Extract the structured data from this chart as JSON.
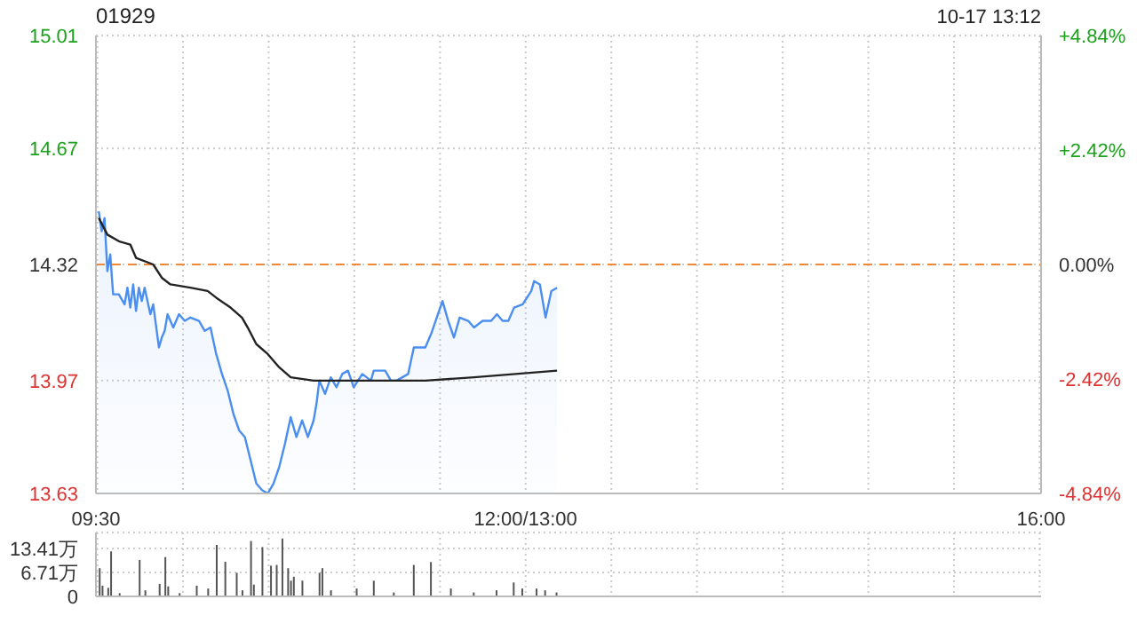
{
  "chart_data": [
    {
      "type": "area",
      "title": "01929",
      "annotations": [
        "10-17 13:12"
      ],
      "categories": [
        "09:30",
        null,
        null,
        null,
        null,
        null,
        null,
        null,
        null,
        null,
        null,
        null,
        null,
        null,
        null,
        null,
        null,
        null,
        null,
        null,
        null,
        null,
        null,
        null,
        null,
        null,
        null,
        null,
        null,
        null,
        null,
        null,
        null,
        null,
        null,
        null,
        null,
        null,
        null,
        null,
        null,
        null,
        null,
        null,
        null,
        null,
        null,
        null,
        null,
        null,
        null,
        null,
        null,
        null,
        null,
        null,
        null,
        null,
        null,
        null,
        null,
        null,
        null,
        null,
        null,
        null,
        null,
        null,
        null,
        null,
        null,
        null,
        null,
        null,
        null,
        null,
        null,
        null,
        null,
        null,
        null,
        null,
        null,
        null,
        null,
        null,
        null,
        null,
        null,
        null,
        null,
        null,
        null,
        null,
        null,
        null,
        null,
        null,
        null,
        null,
        null,
        null,
        null,
        null,
        null,
        null,
        null,
        null,
        null,
        null,
        null,
        null,
        null,
        null,
        null,
        null,
        null,
        null,
        null,
        null,
        null,
        null,
        null,
        null,
        null,
        null,
        null,
        null,
        null,
        null,
        null,
        null,
        null,
        null,
        null,
        null,
        null,
        null,
        null,
        null,
        null,
        null,
        null,
        null,
        null,
        null,
        null,
        null,
        null,
        null,
        "12:00/13:00",
        null,
        null,
        null,
        null,
        null,
        null,
        null,
        null,
        null,
        null,
        null,
        null,
        null,
        null,
        null,
        null,
        null,
        null,
        null,
        null,
        null,
        null,
        null,
        null,
        null,
        null,
        null,
        null,
        null,
        null,
        null,
        null,
        null,
        null,
        null,
        null,
        null,
        null,
        null,
        null,
        null,
        null,
        null,
        null,
        null,
        null,
        null,
        null,
        null,
        null,
        null,
        null,
        null,
        null,
        null,
        null,
        null,
        null,
        null,
        null,
        null,
        null,
        null,
        null,
        null,
        null,
        null,
        null,
        null,
        null,
        null,
        null,
        null,
        null,
        null,
        null,
        null,
        null,
        null,
        null,
        null,
        null,
        null,
        null,
        null,
        null,
        null,
        null,
        null,
        null,
        null,
        null,
        null,
        null,
        null,
        null,
        null,
        null,
        null,
        null,
        null,
        null,
        null,
        null,
        null,
        null,
        null,
        null,
        null,
        null,
        null,
        null,
        null,
        null,
        null,
        null,
        null,
        null,
        null,
        null,
        null,
        null,
        null,
        null,
        null,
        null,
        null,
        null,
        null,
        null,
        null,
        null,
        null,
        null,
        null,
        null,
        null,
        null,
        null,
        null,
        null,
        null,
        null,
        null,
        null,
        null,
        null,
        null,
        null,
        null,
        null,
        null,
        null,
        null,
        null,
        null,
        null,
        null,
        null,
        null,
        null,
        null,
        null,
        null,
        null,
        null,
        null,
        null,
        null,
        null,
        null,
        null,
        null,
        null,
        null,
        null,
        null,
        null,
        null,
        "16:00"
      ],
      "ylim": [
        13.63,
        15.01
      ],
      "yticks": [
        13.63,
        13.97,
        14.32,
        14.67,
        15.01
      ],
      "y2lim": [
        -4.84,
        4.84
      ],
      "y2ticks": [
        {
          "value": -4.84,
          "label": "-4.84%"
        },
        {
          "value": -2.42,
          "label": "-2.42%"
        },
        {
          "value": 0,
          "label": "0.00%"
        },
        {
          "value": 2.42,
          "label": "+2.42%"
        },
        {
          "value": 4.84,
          "label": "+4.84%"
        }
      ],
      "grid": true,
      "ref_lines": [
        {
          "axis": "y",
          "value": 14.32,
          "color": "#f0883a",
          "line_style": "dashed"
        }
      ],
      "series": [
        {
          "color": "#4a8ef0",
          "values": [
            null,
            14.48,
            14.42,
            14.46,
            14.3,
            14.35,
            14.23,
            null,
            14.23,
            null,
            14.2,
            14.25,
            14.19,
            14.26,
            14.18,
            14.25,
            14.21,
            14.25,
            null,
            14.17,
            14.2,
            null,
            14.07,
            14.1,
            14.12,
            14.17,
            null,
            14.13,
            null,
            14.17,
            null,
            14.15,
            null,
            14.16,
            null,
            null,
            14.15,
            null,
            14.12,
            null,
            14.13,
            null,
            14.05,
            null,
            13.99,
            null,
            13.94,
            null,
            13.87,
            null,
            13.82,
            null,
            13.8,
            null,
            13.73,
            null,
            13.66,
            null,
            13.64,
            null,
            13.63,
            null,
            13.66,
            null,
            13.71,
            null,
            13.78,
            null,
            13.86,
            null,
            13.8,
            null,
            13.85,
            null,
            13.8,
            null,
            13.85,
            13.9,
            13.97,
            null,
            13.93,
            null,
            13.98,
            null,
            13.95,
            null,
            13.99,
            null,
            14.0,
            null,
            13.95,
            null,
            null,
            13.99,
            null,
            null,
            13.97,
            14.0,
            null,
            null,
            null,
            14.0,
            null,
            13.97,
            null,
            13.97,
            null,
            13.98,
            null,
            13.99,
            null,
            14.07,
            null,
            null,
            null,
            14.07,
            null,
            14.11,
            null,
            null,
            null,
            14.21,
            null,
            14.15,
            null,
            14.1,
            null,
            14.16,
            null,
            null,
            14.15,
            null,
            14.13,
            null,
            null,
            14.15,
            null,
            null,
            14.15,
            null,
            14.17,
            null,
            14.15,
            null,
            14.15,
            null,
            14.19,
            null,
            null,
            14.2,
            null,
            null,
            14.24,
            14.27,
            null,
            14.26,
            null,
            14.16,
            null,
            14.24,
            null,
            14.25,
            null,
            null,
            null,
            null,
            null,
            null,
            null,
            null,
            null,
            null,
            null,
            null,
            null,
            null,
            null,
            null,
            null,
            null,
            null,
            null,
            null,
            null,
            null,
            null,
            null,
            null,
            null,
            null,
            null,
            null,
            null,
            null,
            null,
            null,
            null,
            null,
            null,
            null,
            null,
            null,
            null,
            null,
            null,
            null,
            null,
            null,
            null,
            null,
            null,
            null,
            null,
            null,
            null,
            null,
            null,
            null,
            null,
            null,
            null,
            null,
            null,
            null,
            null,
            null,
            null,
            null,
            null,
            null,
            null,
            null,
            null,
            null,
            null,
            null,
            null,
            null,
            null,
            null,
            null,
            null,
            null,
            null,
            null,
            null,
            null,
            null,
            null,
            null,
            null,
            null,
            null,
            null,
            null,
            null,
            null,
            null,
            null,
            null,
            null,
            null,
            null,
            null,
            null,
            null,
            null,
            null,
            null,
            null,
            null,
            null,
            null,
            null,
            null,
            null,
            null,
            null,
            null,
            null,
            null,
            null,
            null,
            null,
            null,
            null,
            null,
            null,
            null,
            null,
            null,
            null,
            null,
            null,
            null,
            null,
            null,
            null,
            null,
            null,
            null,
            null,
            null,
            null,
            null,
            null,
            null,
            null,
            null,
            null,
            null,
            null,
            null,
            null,
            null,
            null,
            null,
            null,
            null,
            null,
            null,
            null,
            null,
            null,
            null,
            null,
            null,
            null,
            null,
            null,
            null
          ]
        },
        {
          "type": "line",
          "color": "#222222",
          "values": [
            null,
            14.46,
            null,
            null,
            14.41,
            null,
            null,
            null,
            14.39,
            null,
            null,
            null,
            14.38,
            null,
            14.34,
            null,
            null,
            null,
            null,
            null,
            14.32,
            null,
            null,
            14.28,
            null,
            null,
            14.26,
            null,
            null,
            null,
            null,
            null,
            null,
            14.25,
            null,
            null,
            null,
            null,
            null,
            14.24,
            null,
            null,
            14.22,
            null,
            null,
            null,
            null,
            14.19,
            null,
            null,
            null,
            14.16,
            null,
            14.13,
            null,
            null,
            14.08,
            null,
            null,
            null,
            14.05,
            null,
            null,
            null,
            14.01,
            null,
            null,
            null,
            13.98,
            null,
            null,
            null,
            null,
            null,
            null,
            null,
            13.97,
            null,
            null,
            null,
            null,
            null,
            null,
            null,
            null,
            null,
            null,
            null,
            13.97,
            null,
            null,
            null,
            null,
            null,
            null,
            null,
            null,
            null,
            null,
            null,
            null,
            null,
            null,
            null,
            null,
            13.97,
            null,
            null,
            null,
            null,
            null,
            null,
            null,
            null,
            null,
            13.97,
            null,
            null,
            null,
            null,
            null,
            null,
            null,
            null,
            null,
            null,
            null,
            null,
            null,
            null,
            null,
            null,
            13.98,
            null,
            null,
            null,
            null,
            null,
            null,
            null,
            null,
            null,
            null,
            null,
            null,
            null,
            null,
            null,
            null,
            null,
            null,
            null,
            null,
            null,
            null,
            null,
            null,
            null,
            null,
            null,
            null,
            14.0,
            null,
            null,
            null,
            null,
            null,
            null,
            null,
            null,
            null,
            null,
            null,
            null,
            null,
            null,
            null,
            null,
            null,
            null,
            null,
            null,
            null,
            null,
            null,
            null,
            null,
            null,
            null,
            null,
            null,
            null,
            null,
            null,
            null,
            null,
            null,
            null,
            null,
            null,
            null,
            null,
            null,
            null,
            null,
            null,
            null,
            null,
            null,
            null,
            null,
            null,
            null,
            null,
            null,
            null,
            null,
            null,
            null,
            null,
            null,
            null,
            null,
            null,
            null,
            null,
            null,
            null,
            null,
            null,
            null,
            null,
            null,
            null,
            null,
            null,
            null,
            null,
            null,
            null,
            null,
            null,
            null,
            null,
            null,
            null,
            null,
            null,
            null,
            null,
            null,
            null,
            null,
            null,
            null,
            null,
            null,
            null,
            null,
            null,
            null,
            null,
            null,
            null,
            null,
            null,
            null,
            null,
            null,
            null,
            null,
            null,
            null,
            null,
            null,
            null,
            null,
            null,
            null,
            null,
            null,
            null,
            null,
            null,
            null,
            null,
            null,
            null,
            null,
            null,
            null,
            null,
            null,
            null,
            null,
            null,
            null,
            null,
            null,
            null,
            null,
            null,
            null,
            null,
            null,
            null,
            null,
            null,
            null,
            null,
            null,
            null,
            null,
            null,
            null,
            null,
            null,
            null,
            null,
            null,
            null,
            null,
            null,
            null,
            null,
            null,
            null,
            null,
            null,
            null,
            null
          ]
        }
      ]
    },
    {
      "type": "bar",
      "grid": true,
      "categories": [
        null,
        null,
        null,
        null,
        null,
        null,
        null,
        null,
        null,
        null,
        null,
        null,
        null,
        null,
        null,
        null,
        null,
        null,
        null,
        null,
        null,
        null,
        null,
        null,
        null,
        null,
        null,
        null,
        null,
        null,
        null,
        null,
        null,
        null,
        null,
        null,
        null,
        null,
        null,
        null,
        null,
        null,
        null,
        null,
        null,
        null,
        null,
        null,
        null,
        null,
        null,
        null,
        null,
        null,
        null,
        null,
        null,
        null,
        null,
        null,
        null,
        null,
        null,
        null,
        null,
        null,
        null,
        null,
        null,
        null,
        null,
        null,
        null,
        null,
        null,
        null,
        null,
        null,
        null,
        null,
        null,
        null,
        null,
        null,
        null,
        null,
        null,
        null,
        null,
        null,
        null,
        null,
        null,
        null,
        null,
        null,
        null,
        null,
        null,
        null,
        null,
        null,
        null,
        null,
        null,
        null,
        null,
        null,
        null,
        null,
        null,
        null,
        null,
        null,
        null,
        null,
        null,
        null,
        null,
        null,
        null,
        null,
        null,
        null,
        null,
        null,
        null,
        null,
        null,
        null,
        null,
        null,
        null,
        null,
        null,
        null,
        null,
        null,
        null,
        null,
        null,
        null,
        null,
        null,
        null,
        null,
        null,
        null,
        null,
        null,
        null,
        null,
        null,
        null,
        null,
        null,
        null,
        null,
        null,
        null,
        null,
        null,
        null,
        null,
        null,
        null,
        null,
        null,
        null,
        null,
        null,
        null,
        null,
        null,
        null,
        null,
        null,
        null,
        null,
        null,
        null,
        null,
        null,
        null,
        null,
        null,
        null,
        null,
        null,
        null,
        null,
        null,
        null,
        null,
        null,
        null,
        null,
        null,
        null,
        null,
        null,
        null,
        null,
        null,
        null,
        null,
        null,
        null,
        null,
        null,
        null,
        null,
        null,
        null,
        null,
        null,
        null,
        null,
        null,
        null,
        null,
        null,
        null,
        null,
        null,
        null,
        null,
        null,
        null,
        null,
        null,
        null,
        null,
        null,
        null,
        null,
        null,
        null,
        null,
        null,
        null,
        null,
        null,
        null,
        null,
        null,
        null,
        null,
        null,
        null,
        null,
        null,
        null,
        null,
        null,
        null,
        null,
        null,
        null,
        null,
        null,
        null,
        null,
        null,
        null,
        null,
        null,
        null,
        null,
        null,
        null,
        null,
        null,
        null,
        null,
        null,
        null,
        null,
        null,
        null,
        null,
        null,
        null,
        null,
        null,
        null,
        null,
        null,
        null,
        null,
        null,
        null,
        null,
        null,
        null,
        null,
        null,
        null,
        null,
        null,
        null,
        null,
        null,
        null,
        null,
        null,
        null,
        null,
        null,
        null,
        null,
        null,
        null,
        null,
        null,
        null,
        null,
        null,
        null,
        null,
        null,
        null,
        null,
        null,
        null,
        null,
        null,
        null,
        null,
        null,
        null
      ],
      "ylim": [
        0,
        17.88
      ],
      "yticks": [
        0,
        {
          "value": 6.71,
          "label": "6.71万"
        },
        {
          "value": 13.41,
          "label": "13.41万"
        }
      ],
      "series": [
        {
          "color": "#555555",
          "values": [
            null,
            7.9,
            3.0,
            null,
            2.4,
            12.6,
            null,
            null,
            0.9,
            null,
            null,
            null,
            null,
            null,
            null,
            10.2,
            null,
            1.7,
            null,
            null,
            null,
            null,
            3.5,
            null,
            11.0,
            2.8,
            null,
            null,
            null,
            0.9,
            null,
            null,
            null,
            null,
            null,
            3.0,
            null,
            null,
            null,
            2.2,
            null,
            null,
            14.4,
            null,
            null,
            9.7,
            null,
            null,
            null,
            6.6,
            null,
            1.7,
            null,
            null,
            15.5,
            3.3,
            null,
            null,
            13.8,
            null,
            null,
            8.6,
            null,
            8.8,
            null,
            16.2,
            null,
            7.9,
            4.4,
            5.5,
            null,
            null,
            4.4,
            null,
            null,
            null,
            null,
            null,
            6.6,
            7.9,
            null,
            null,
            1.7,
            null,
            null,
            null,
            null,
            null,
            null,
            null,
            null,
            2.2,
            null,
            null,
            null,
            null,
            null,
            4.4,
            null,
            null,
            null,
            null,
            null,
            null,
            1.1,
            null,
            null,
            null,
            null,
            null,
            null,
            8.8,
            null,
            null,
            null,
            null,
            null,
            9.6,
            null,
            null,
            null,
            null,
            null,
            null,
            2.2,
            null,
            null,
            null,
            null,
            null,
            null,
            null,
            1.1,
            null,
            null,
            null,
            null,
            null,
            null,
            null,
            1.7,
            null,
            null,
            null,
            null,
            null,
            3.9,
            null,
            null,
            2.2,
            null,
            null,
            null,
            null,
            2.2,
            null,
            null,
            1.7,
            null,
            null,
            null,
            1.1,
            null,
            null,
            null,
            null,
            null,
            null,
            null,
            null,
            null,
            null,
            null,
            null,
            null,
            null,
            null,
            null,
            null,
            null,
            null,
            null,
            null,
            null,
            null,
            null,
            null,
            null,
            null,
            null,
            null,
            null,
            null,
            null,
            null,
            null,
            null,
            null,
            null,
            null,
            null,
            null,
            null,
            null,
            null,
            null,
            null,
            null,
            null,
            null,
            null,
            null,
            null,
            null,
            null,
            null,
            null,
            null,
            null,
            null,
            null,
            null,
            null,
            null,
            null,
            null,
            null,
            null,
            null,
            null,
            null,
            null,
            null,
            null,
            null,
            null,
            null,
            null,
            null,
            null,
            null,
            null,
            null,
            null,
            null,
            null,
            null,
            null,
            null,
            null,
            null,
            null,
            null,
            null,
            null,
            null,
            null,
            null,
            null,
            null,
            null,
            null,
            null,
            null,
            null,
            null,
            null,
            null,
            null,
            null,
            null,
            null,
            null,
            null,
            null,
            null,
            null,
            null,
            null,
            null,
            null,
            null,
            null,
            null,
            null,
            null,
            null,
            null,
            null,
            null,
            null,
            null,
            null,
            null,
            null,
            null,
            null,
            null,
            null,
            null,
            null,
            null,
            null,
            null,
            null,
            null,
            null,
            null,
            null,
            null,
            null,
            null,
            null,
            null,
            null,
            null,
            null,
            null,
            null,
            null,
            null,
            null,
            null,
            null,
            null,
            null,
            null,
            null,
            null,
            null,
            null
          ]
        }
      ]
    }
  ]
}
